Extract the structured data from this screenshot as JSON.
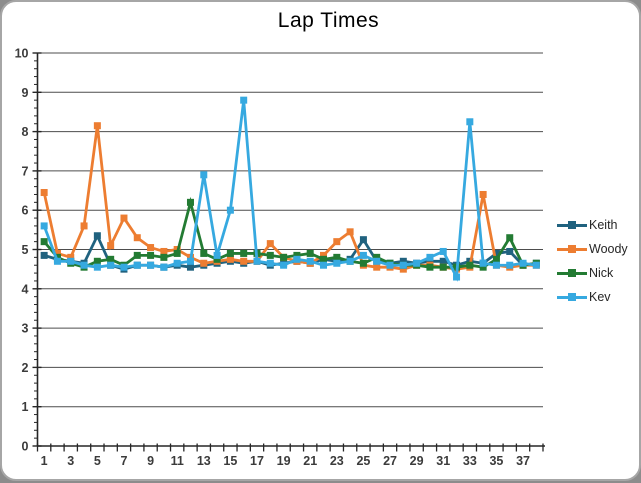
{
  "chart_data": {
    "type": "line",
    "title": "Lap Times",
    "xlabel": "",
    "ylabel": "",
    "ylim": [
      0,
      10
    ],
    "y_tick_step": 1,
    "y_minor_tick_step": 0.2,
    "grid": "horizontal-major",
    "legend_position": "right",
    "x": [
      1,
      2,
      3,
      4,
      5,
      6,
      7,
      8,
      9,
      10,
      11,
      12,
      13,
      14,
      15,
      16,
      17,
      18,
      19,
      20,
      21,
      22,
      23,
      24,
      25,
      26,
      27,
      28,
      29,
      30,
      31,
      32,
      33,
      34,
      35,
      36,
      37,
      38
    ],
    "x_tick_labels": [
      "1",
      "3",
      "5",
      "7",
      "9",
      "11",
      "13",
      "15",
      "17",
      "19",
      "21",
      "23",
      "25",
      "27",
      "29",
      "31",
      "33",
      "35",
      "37"
    ],
    "y_tick_labels": [
      "0",
      "1",
      "2",
      "3",
      "4",
      "5",
      "6",
      "7",
      "8",
      "9",
      "10"
    ],
    "series": [
      {
        "name": "Keith",
        "color": "#20627F",
        "values": [
          4.85,
          4.75,
          4.7,
          4.65,
          5.35,
          4.6,
          4.5,
          4.6,
          4.6,
          4.55,
          4.6,
          4.55,
          4.6,
          4.65,
          4.7,
          4.65,
          4.7,
          4.6,
          4.65,
          4.7,
          4.65,
          4.75,
          4.7,
          4.75,
          5.25,
          4.7,
          4.65,
          4.7,
          4.65,
          4.7,
          4.7,
          4.6,
          4.7,
          4.65,
          4.9,
          4.95,
          4.6,
          4.65
        ]
      },
      {
        "name": "Woody",
        "color": "#ED7D31",
        "values": [
          6.45,
          4.9,
          4.8,
          5.6,
          8.15,
          5.1,
          5.8,
          5.3,
          5.05,
          4.95,
          5.0,
          4.8,
          4.65,
          4.7,
          4.75,
          4.7,
          4.7,
          5.15,
          4.8,
          4.7,
          4.65,
          4.85,
          5.2,
          5.45,
          4.6,
          4.55,
          4.55,
          4.5,
          4.6,
          4.6,
          4.55,
          4.5,
          4.55,
          6.4,
          4.6,
          4.55,
          4.6,
          4.6
        ]
      },
      {
        "name": "Nick",
        "color": "#237B33",
        "values": [
          5.2,
          4.8,
          4.65,
          4.55,
          4.7,
          4.75,
          4.6,
          4.85,
          4.85,
          4.8,
          4.9,
          6.2,
          4.9,
          4.75,
          4.9,
          4.9,
          4.9,
          4.85,
          4.8,
          4.85,
          4.9,
          4.75,
          4.8,
          4.7,
          4.65,
          4.8,
          4.65,
          4.6,
          4.6,
          4.55,
          4.55,
          4.55,
          4.6,
          4.55,
          4.75,
          5.3,
          4.6,
          4.65
        ]
      },
      {
        "name": "Kev",
        "color": "#36A9E0",
        "values": [
          5.6,
          4.7,
          4.7,
          4.6,
          4.55,
          4.6,
          4.55,
          4.6,
          4.6,
          4.55,
          4.65,
          4.7,
          6.9,
          4.85,
          6.0,
          8.8,
          4.7,
          4.65,
          4.6,
          4.75,
          4.7,
          4.6,
          4.65,
          4.7,
          4.85,
          4.7,
          4.6,
          4.6,
          4.65,
          4.8,
          4.95,
          4.3,
          8.25,
          4.65,
          4.6,
          4.6,
          4.65,
          4.6
        ]
      }
    ],
    "style": {
      "grid_color": "#4D4D4D",
      "axis_color": "#262626",
      "tick_label_color": "#3B3B3B",
      "background": "#FFFFFF",
      "frame_border": "#A6A6A6",
      "page_background": "#8C8C8C"
    }
  }
}
